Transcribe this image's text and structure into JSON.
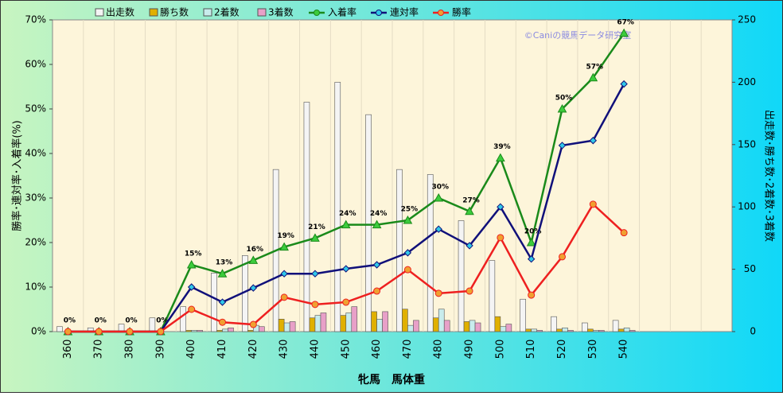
{
  "chart_data": {
    "type": "bar",
    "x_label": "牝馬　馬体重",
    "y_label": "勝率･連対率･入着率(%)",
    "y2_label": "出走数･勝ち数･2着数･3着数",
    "watermark": "©Caniの競馬データ研究室",
    "categories": [
      "360",
      "370",
      "380",
      "390",
      "400",
      "410",
      "420",
      "430",
      "440",
      "450",
      "460",
      "470",
      "480",
      "490",
      "500",
      "510",
      "520",
      "530",
      "540",
      null,
      null,
      null
    ],
    "ylim": [
      0,
      70
    ],
    "yticks": [
      {
        "value": 0,
        "label": "0%"
      },
      {
        "value": 10,
        "label": "10%"
      },
      {
        "value": 20,
        "label": "20%"
      },
      {
        "value": 30,
        "label": "30%"
      },
      {
        "value": 40,
        "label": "40%"
      },
      {
        "value": 50,
        "label": "50%"
      },
      {
        "value": 60,
        "label": "60%"
      },
      {
        "value": 70,
        "label": "70%"
      }
    ],
    "y2lim": [
      0,
      250
    ],
    "y2ticks": [
      0,
      50,
      100,
      150,
      200,
      250
    ],
    "grid": true,
    "series": [
      {
        "name": "出走数",
        "type": "bar",
        "axis": "y2",
        "color": "#f4f4f4",
        "values": [
          4,
          3,
          6,
          11,
          20,
          47,
          61,
          130,
          184,
          200,
          174,
          130,
          126,
          89,
          57,
          26,
          12,
          7,
          9,
          null,
          null,
          null
        ]
      },
      {
        "name": "勝ち数",
        "type": "bar",
        "axis": "y2",
        "color": "#e0b000",
        "values": [
          0,
          0,
          0,
          0,
          1,
          1,
          1,
          10,
          11,
          13,
          16,
          18,
          11,
          8,
          12,
          2,
          2,
          2,
          2,
          null,
          null,
          null
        ]
      },
      {
        "name": "2着数",
        "type": "bar",
        "axis": "y2",
        "color": "#c8ecec",
        "values": [
          0,
          0,
          0,
          0,
          1,
          2,
          5,
          7,
          13,
          15,
          10,
          5,
          18,
          9,
          4,
          2,
          3,
          1,
          3,
          null,
          null,
          null
        ]
      },
      {
        "name": "3着数",
        "type": "bar",
        "axis": "y2",
        "color": "#e8a0c8",
        "values": [
          0,
          0,
          0,
          0,
          1,
          3,
          4,
          8,
          15,
          20,
          16,
          9,
          9,
          7,
          6,
          1,
          1,
          1,
          1,
          null,
          null,
          null
        ]
      },
      {
        "name": "入着率",
        "type": "line",
        "marker": "triangle",
        "color": "#1a8a1a",
        "marker_color": "#3ccc3c",
        "values": [
          0,
          0,
          0,
          0,
          15,
          13,
          16,
          19,
          21,
          24,
          24,
          25,
          30,
          27,
          39,
          20,
          50,
          57,
          67,
          null,
          null,
          null
        ],
        "value_labels": [
          "0%",
          "0%",
          "0%",
          "0%",
          "15%",
          "13%",
          "16%",
          "19%",
          "21%",
          "24%",
          "24%",
          "25%",
          "30%",
          "27%",
          "39%",
          "20%",
          "50%",
          "57%",
          "67%",
          null,
          null,
          null
        ]
      },
      {
        "name": "連対率",
        "type": "line",
        "marker": "diamond",
        "color": "#10107a",
        "marker_color": "#30c8e8",
        "values": [
          0,
          0,
          0,
          0,
          10,
          6.6,
          9.8,
          13,
          13,
          14.1,
          15,
          17.7,
          23,
          19.3,
          28,
          16.3,
          41.8,
          42.9,
          55.6,
          null,
          null,
          null
        ]
      },
      {
        "name": "勝率",
        "type": "line",
        "marker": "circle",
        "color": "#ee2020",
        "marker_color": "#f0a030",
        "values": [
          0,
          0,
          0,
          0,
          5,
          2.1,
          1.6,
          7.7,
          6.1,
          6.6,
          9.1,
          13.9,
          8.6,
          9.1,
          21.1,
          8.2,
          16.8,
          28.6,
          22.2,
          null,
          null,
          null
        ]
      }
    ]
  }
}
